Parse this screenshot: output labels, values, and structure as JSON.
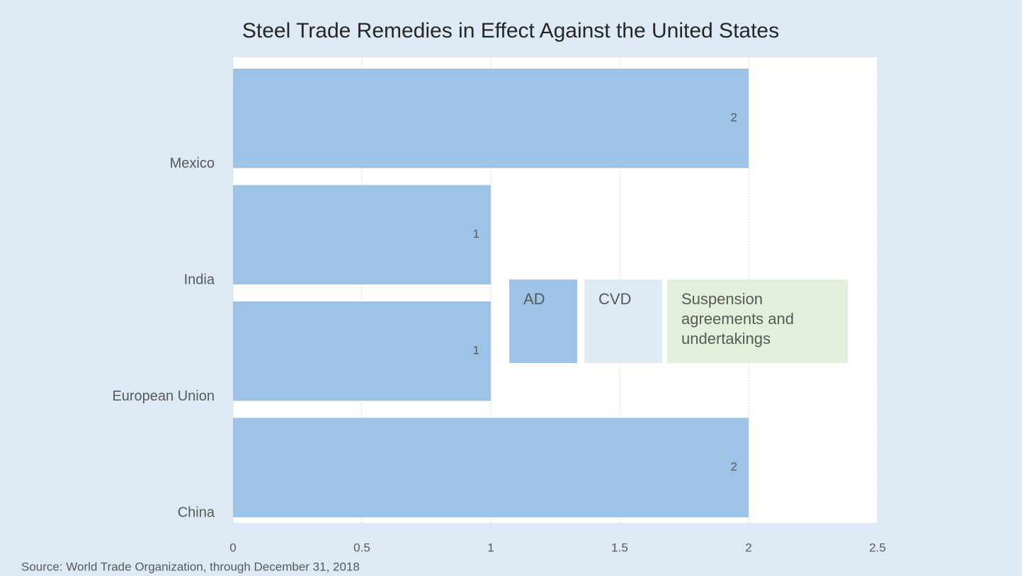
{
  "chart_data": {
    "type": "bar",
    "orientation": "horizontal",
    "stacked": true,
    "title": "Steel Trade Remedies in Effect Against the United States",
    "categories": [
      "Mexico",
      "India",
      "European Union",
      "China"
    ],
    "series": [
      {
        "name": "AD",
        "color": "#9dc3e6",
        "values": [
          2,
          1,
          1,
          2
        ]
      },
      {
        "name": "CVD",
        "color": "#deebf7",
        "values": [
          null,
          null,
          null,
          null
        ]
      },
      {
        "name": "Suspension agreements and undertakings",
        "color": "#e2efda",
        "values": [
          null,
          null,
          null,
          null
        ]
      }
    ],
    "xlim": [
      0,
      2.5
    ],
    "xticks": [
      0,
      0.5,
      1,
      1.5,
      2,
      2.5
    ],
    "grid": true,
    "source": "Source: World Trade Organization, through December 31, 2018"
  }
}
